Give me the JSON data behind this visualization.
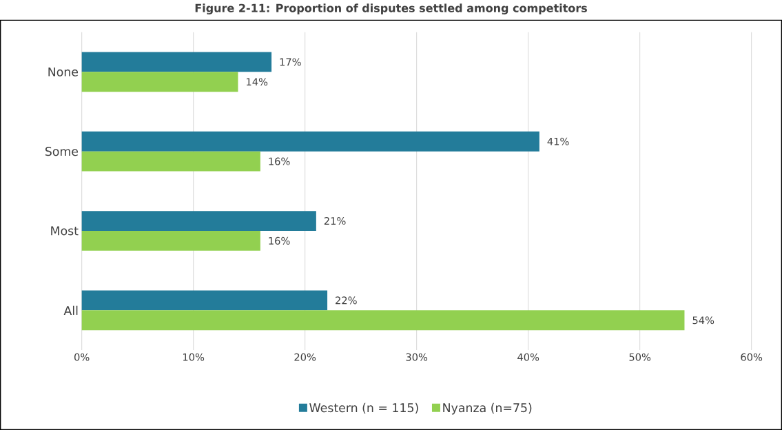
{
  "chart_data": {
    "type": "bar",
    "orientation": "horizontal",
    "title": "Figure 2-11: Proportion of disputes settled among competitors",
    "categories": [
      "None",
      "Some",
      "Most",
      "All"
    ],
    "series": [
      {
        "name": "Western (n = 115)",
        "color": "#237c9a",
        "values": [
          17,
          41,
          21,
          22
        ],
        "value_labels": [
          "17%",
          "41%",
          "21%",
          "22%"
        ]
      },
      {
        "name": "Nyanza (n=75)",
        "color": "#92d050",
        "values": [
          14,
          16,
          16,
          54
        ],
        "value_labels": [
          "14%",
          "16%",
          "16%",
          "54%"
        ]
      }
    ],
    "xlim": [
      0,
      60
    ],
    "xticks": [
      {
        "value": 0,
        "label": "0%"
      },
      {
        "value": 10,
        "label": "10%"
      },
      {
        "value": 20,
        "label": "20%"
      },
      {
        "value": 30,
        "label": "30%"
      },
      {
        "value": 40,
        "label": "40%"
      },
      {
        "value": 50,
        "label": "50%"
      },
      {
        "value": 60,
        "label": "60%"
      }
    ],
    "grid": "x",
    "legend": "bottom"
  }
}
